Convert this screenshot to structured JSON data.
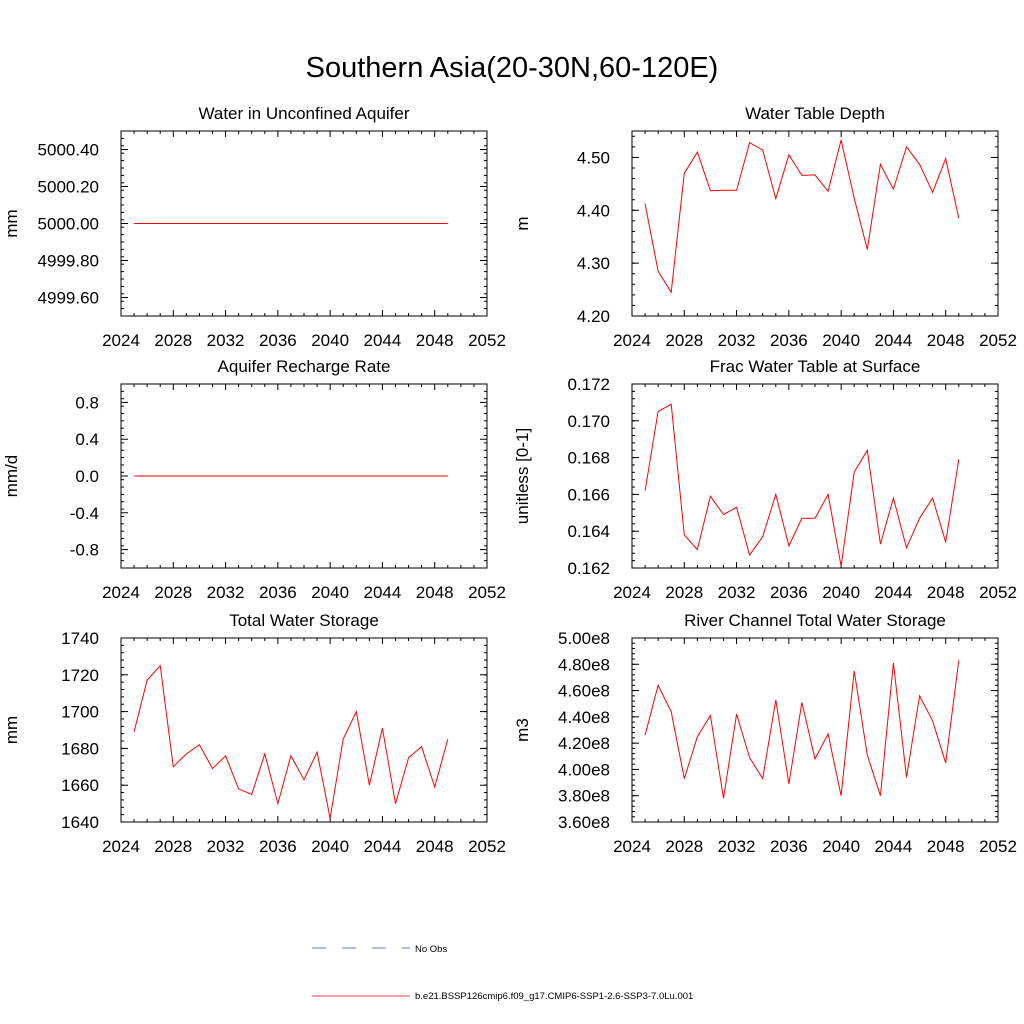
{
  "title": "Southern Asia(20-30N,60-120E)",
  "colors": {
    "model": "#ff0000",
    "obs": "#3050c0",
    "axis": "#000000"
  },
  "legend": {
    "obs_label": "No Obs",
    "model_label": "b.e21.BSSP126cmip6.f09_g17.CMIP6-SSP1-2.6-SSP3-7.0Lu.001"
  },
  "chart_data": [
    {
      "type": "line",
      "title": "Water in Unconfined Aquifer",
      "ylabel": "mm",
      "xlim": [
        2024,
        2052
      ],
      "x_ticks": [
        2024,
        2028,
        2032,
        2036,
        2040,
        2044,
        2048,
        2052
      ],
      "ylim": [
        4999.5,
        5000.5
      ],
      "y_ticks": [
        4999.6,
        4999.8,
        5000.0,
        5000.2,
        5000.4
      ],
      "y_tick_labels": [
        "4999.60",
        "4999.80",
        "5000.00",
        "5000.20",
        "5000.40"
      ],
      "y_minor": 0.04,
      "x": [
        2025,
        2026,
        2027,
        2028,
        2029,
        2030,
        2031,
        2032,
        2033,
        2034,
        2035,
        2036,
        2037,
        2038,
        2039,
        2040,
        2041,
        2042,
        2043,
        2044,
        2045,
        2046,
        2047,
        2048,
        2049
      ],
      "series": [
        {
          "values": [
            5000,
            5000,
            5000,
            5000,
            5000,
            5000,
            5000,
            5000,
            5000,
            5000,
            5000,
            5000,
            5000,
            5000,
            5000,
            5000,
            5000,
            5000,
            5000,
            5000,
            5000,
            5000,
            5000,
            5000,
            5000
          ]
        }
      ]
    },
    {
      "type": "line",
      "title": "Water Table Depth",
      "ylabel": "m",
      "xlim": [
        2024,
        2052
      ],
      "x_ticks": [
        2024,
        2028,
        2032,
        2036,
        2040,
        2044,
        2048,
        2052
      ],
      "ylim": [
        4.2,
        4.55
      ],
      "y_ticks": [
        4.2,
        4.3,
        4.4,
        4.5
      ],
      "y_tick_labels": [
        "4.20",
        "4.30",
        "4.40",
        "4.50"
      ],
      "y_minor": 0.02,
      "x": [
        2025,
        2026,
        2027,
        2028,
        2029,
        2030,
        2031,
        2032,
        2033,
        2034,
        2035,
        2036,
        2037,
        2038,
        2039,
        2040,
        2041,
        2042,
        2043,
        2044,
        2045,
        2046,
        2047,
        2048,
        2049
      ],
      "series": [
        {
          "values": [
            4.412,
            4.285,
            4.245,
            4.47,
            4.51,
            4.437,
            4.438,
            4.438,
            4.528,
            4.514,
            4.422,
            4.505,
            4.466,
            4.467,
            4.436,
            4.533,
            4.423,
            4.326,
            4.487,
            4.44,
            4.52,
            4.487,
            4.434,
            4.498,
            4.385
          ]
        }
      ]
    },
    {
      "type": "line",
      "title": "Aquifer Recharge Rate",
      "ylabel": "mm/d",
      "xlim": [
        2024,
        2052
      ],
      "x_ticks": [
        2024,
        2028,
        2032,
        2036,
        2040,
        2044,
        2048,
        2052
      ],
      "ylim": [
        -1.0,
        1.0
      ],
      "y_ticks": [
        -0.8,
        -0.4,
        0.0,
        0.4,
        0.8
      ],
      "y_tick_labels": [
        "-0.8",
        "-0.4",
        "0.0",
        "0.4",
        "0.8"
      ],
      "y_minor": 0.08,
      "x": [
        2025,
        2026,
        2027,
        2028,
        2029,
        2030,
        2031,
        2032,
        2033,
        2034,
        2035,
        2036,
        2037,
        2038,
        2039,
        2040,
        2041,
        2042,
        2043,
        2044,
        2045,
        2046,
        2047,
        2048,
        2049
      ],
      "series": [
        {
          "values": [
            0,
            0,
            0,
            0,
            0,
            0,
            0,
            0,
            0,
            0,
            0,
            0,
            0,
            0,
            0,
            0,
            0,
            0,
            0,
            0,
            0,
            0,
            0,
            0,
            0
          ]
        }
      ]
    },
    {
      "type": "line",
      "title": "Frac Water Table at Surface",
      "ylabel": "unitless [0-1]",
      "xlim": [
        2024,
        2052
      ],
      "x_ticks": [
        2024,
        2028,
        2032,
        2036,
        2040,
        2044,
        2048,
        2052
      ],
      "ylim": [
        0.162,
        0.172
      ],
      "y_ticks": [
        0.162,
        0.164,
        0.166,
        0.168,
        0.17,
        0.172
      ],
      "y_tick_labels": [
        "0.162",
        "0.164",
        "0.166",
        "0.168",
        "0.170",
        "0.172"
      ],
      "y_minor": 0.0004,
      "x": [
        2025,
        2026,
        2027,
        2028,
        2029,
        2030,
        2031,
        2032,
        2033,
        2034,
        2035,
        2036,
        2037,
        2038,
        2039,
        2040,
        2041,
        2042,
        2043,
        2044,
        2045,
        2046,
        2047,
        2048,
        2049
      ],
      "series": [
        {
          "values": [
            0.1662,
            0.1705,
            0.1709,
            0.1638,
            0.163,
            0.1659,
            0.1649,
            0.1653,
            0.1627,
            0.1637,
            0.166,
            0.1632,
            0.1647,
            0.1647,
            0.166,
            0.1621,
            0.1672,
            0.1684,
            0.1633,
            0.1658,
            0.1631,
            0.1647,
            0.1658,
            0.1634,
            0.1679
          ]
        }
      ]
    },
    {
      "type": "line",
      "title": "Total Water Storage",
      "ylabel": "mm",
      "xlim": [
        2024,
        2052
      ],
      "x_ticks": [
        2024,
        2028,
        2032,
        2036,
        2040,
        2044,
        2048,
        2052
      ],
      "ylim": [
        1640,
        1740
      ],
      "y_ticks": [
        1640,
        1660,
        1680,
        1700,
        1720,
        1740
      ],
      "y_tick_labels": [
        "1640",
        "1660",
        "1680",
        "1700",
        "1720",
        "1740"
      ],
      "y_minor": 4,
      "x": [
        2025,
        2026,
        2027,
        2028,
        2029,
        2030,
        2031,
        2032,
        2033,
        2034,
        2035,
        2036,
        2037,
        2038,
        2039,
        2040,
        2041,
        2042,
        2043,
        2044,
        2045,
        2046,
        2047,
        2048,
        2049
      ],
      "series": [
        {
          "values": [
            1689,
            1717,
            1725,
            1670,
            1677,
            1682,
            1669,
            1676,
            1658,
            1655,
            1677,
            1650,
            1676,
            1663,
            1678,
            1642,
            1685,
            1700,
            1660,
            1691,
            1650,
            1675,
            1681,
            1659,
            1685
          ]
        }
      ]
    },
    {
      "type": "line",
      "title": "River Channel Total Water Storage",
      "ylabel": "m3",
      "xlim": [
        2024,
        2052
      ],
      "x_ticks": [
        2024,
        2028,
        2032,
        2036,
        2040,
        2044,
        2048,
        2052
      ],
      "ylim": [
        360000000,
        500000000
      ],
      "y_ticks": [
        360000000,
        380000000,
        400000000,
        420000000,
        440000000,
        460000000,
        480000000,
        500000000
      ],
      "y_tick_labels": [
        "3.60e8",
        "3.80e8",
        "4.00e8",
        "4.20e8",
        "4.40e8",
        "4.60e8",
        "4.80e8",
        "5.00e8"
      ],
      "y_minor": 4000000,
      "x": [
        2025,
        2026,
        2027,
        2028,
        2029,
        2030,
        2031,
        2032,
        2033,
        2034,
        2035,
        2036,
        2037,
        2038,
        2039,
        2040,
        2041,
        2042,
        2043,
        2044,
        2045,
        2046,
        2047,
        2048,
        2049
      ],
      "series": [
        {
          "values": [
            426000000,
            464000000,
            444000000,
            393000000,
            425000000,
            441000000,
            378000000,
            442000000,
            409000000,
            393000000,
            453000000,
            389000000,
            451000000,
            408000000,
            427000000,
            380000000,
            475000000,
            411000000,
            380000000,
            481000000,
            394000000,
            456000000,
            437000000,
            405000000,
            483000000
          ]
        }
      ]
    }
  ]
}
